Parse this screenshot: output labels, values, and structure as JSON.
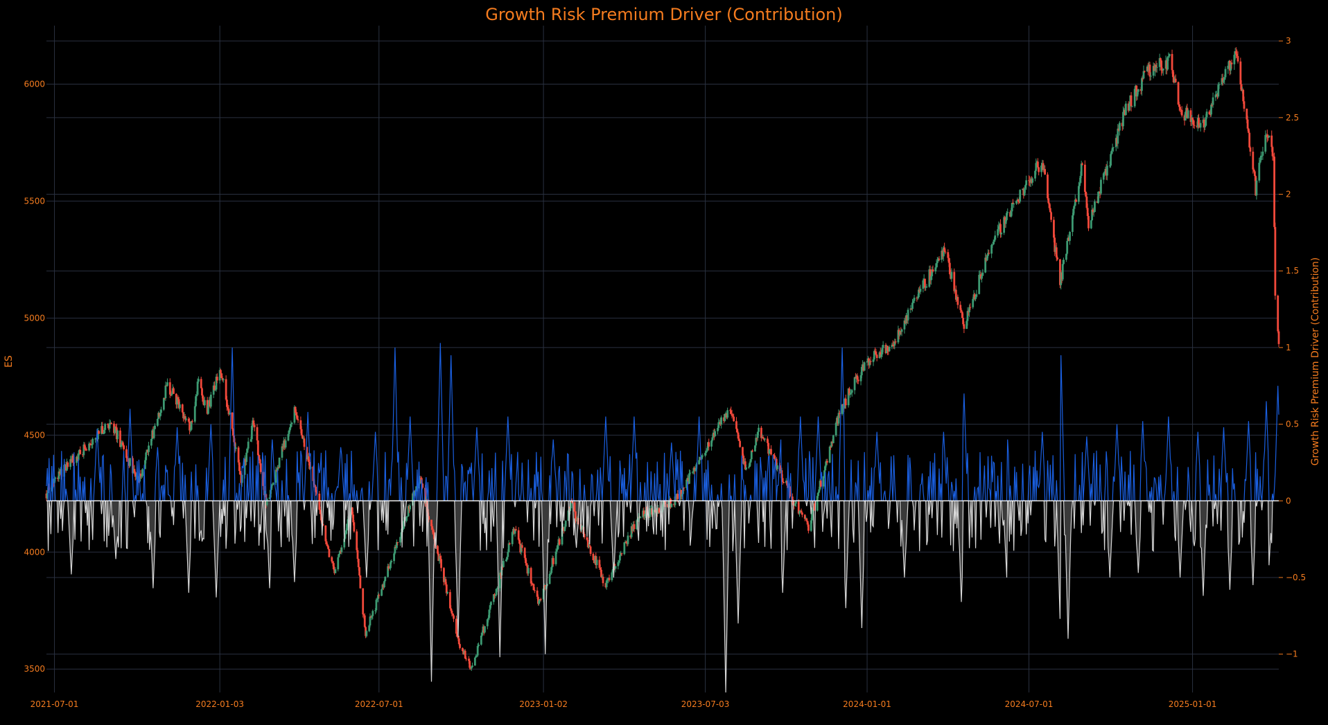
{
  "chart_data": {
    "type": "line",
    "title": "Growth Risk Premium Driver (Contribution)",
    "title_color": "#f57c1f",
    "tick_color": "#f57c1f",
    "background": "#000000",
    "grid_color": "#2a3140",
    "grid": true,
    "left_axis": {
      "label": "ES",
      "ylim": [
        3400,
        6250
      ],
      "ticks": [
        3500,
        4000,
        4500,
        5000,
        5500,
        6000
      ],
      "tick_labels": [
        "3500",
        "4000",
        "4500",
        "5000",
        "5500",
        "6000"
      ]
    },
    "right_axis": {
      "label": "Growth Risk Premium Driver (Contribution)",
      "ylim": [
        -1.25,
        3.1
      ],
      "ticks": [
        -1,
        -0.5,
        0,
        0.5,
        1,
        1.5,
        2,
        2.5,
        3
      ],
      "tick_labels": [
        "−1",
        "−0.5",
        "0",
        "0.5",
        "1",
        "1.5",
        "2",
        "2.5",
        "3"
      ]
    },
    "x_axis": {
      "type": "date",
      "range": [
        "2021-06-22",
        "2025-04-08"
      ],
      "ticks": [
        "2021-07-01",
        "2022-01-03",
        "2022-07-01",
        "2023-01-02",
        "2023-07-03",
        "2024-01-01",
        "2024-07-01",
        "2025-01-01"
      ],
      "tick_labels": [
        "2021-07-01",
        "2022-01-03",
        "2022-07-01",
        "2023-01-02",
        "2023-07-03",
        "2024-01-01",
        "2024-07-01",
        "2025-01-01"
      ]
    },
    "price_anchors": {
      "name": "ES",
      "up_color": "#3d9a72",
      "down_color": "#f2493b",
      "x": [
        "2021-06-22",
        "2021-07-01",
        "2021-09-02",
        "2021-10-04",
        "2021-11-05",
        "2021-12-01",
        "2021-12-10",
        "2021-12-20",
        "2022-01-04",
        "2022-01-27",
        "2022-02-10",
        "2022-02-24",
        "2022-03-29",
        "2022-05-12",
        "2022-05-31",
        "2022-06-16",
        "2022-08-16",
        "2022-09-30",
        "2022-10-13",
        "2022-11-30",
        "2022-12-28",
        "2023-02-02",
        "2023-03-13",
        "2023-04-18",
        "2023-05-31",
        "2023-07-31",
        "2023-08-18",
        "2023-09-01",
        "2023-10-27",
        "2023-12-01",
        "2023-12-28",
        "2024-01-31",
        "2024-02-28",
        "2024-03-28",
        "2024-04-19",
        "2024-05-20",
        "2024-07-16",
        "2024-08-05",
        "2024-08-30",
        "2024-09-06",
        "2024-10-17",
        "2024-11-11",
        "2024-12-06",
        "2024-12-19",
        "2025-01-13",
        "2025-02-19",
        "2025-03-13",
        "2025-03-25",
        "2025-04-02",
        "2025-04-04",
        "2025-04-08"
      ],
      "y": [
        4250,
        4310,
        4560,
        4300,
        4720,
        4530,
        4730,
        4600,
        4790,
        4300,
        4560,
        4200,
        4620,
        3900,
        4200,
        3650,
        4320,
        3600,
        3500,
        4100,
        3780,
        4200,
        3860,
        4150,
        4220,
        4620,
        4350,
        4520,
        4100,
        4600,
        4800,
        4900,
        5100,
        5300,
        4960,
        5320,
        5680,
        5150,
        5650,
        5400,
        5880,
        6050,
        6100,
        5880,
        5830,
        6150,
        5550,
        5800,
        5680,
        5100,
        4900
      ]
    },
    "contribution": {
      "name": "Growth Risk Premium Driver (Contribution)",
      "positive_color": "#1a5fe0",
      "negative_color": "#d8d8d8",
      "zero_line_color": "#ffffff",
      "negative_fill": "#3a3a3a",
      "peaks_x": [
        "2021-08-18",
        "2021-09-24",
        "2021-10-25",
        "2021-11-16",
        "2021-12-24",
        "2022-01-17",
        "2022-03-03",
        "2022-04-12",
        "2022-05-19",
        "2022-06-27",
        "2022-07-19",
        "2022-08-05",
        "2022-09-08",
        "2022-09-20",
        "2022-10-19",
        "2022-11-23",
        "2023-01-13",
        "2023-03-13",
        "2023-04-14",
        "2023-05-26",
        "2023-06-26",
        "2023-07-27",
        "2023-09-26",
        "2023-10-18",
        "2023-11-07",
        "2023-12-04",
        "2024-01-12",
        "2024-02-12",
        "2024-03-27",
        "2024-04-19",
        "2024-06-07",
        "2024-07-16",
        "2024-08-06",
        "2024-09-04",
        "2024-10-08",
        "2024-11-06",
        "2024-12-05",
        "2025-01-07",
        "2025-02-05",
        "2025-03-05",
        "2025-03-25",
        "2025-04-07"
      ],
      "peaks_y": [
        0.47,
        0.6,
        0.35,
        0.48,
        0.5,
        1.0,
        0.4,
        0.58,
        0.35,
        0.45,
        1.0,
        0.55,
        1.03,
        0.95,
        0.48,
        0.55,
        0.4,
        0.55,
        0.55,
        0.38,
        0.55,
        0.35,
        0.4,
        0.55,
        0.55,
        1.0,
        0.45,
        0.35,
        0.45,
        0.7,
        0.4,
        0.45,
        0.95,
        0.42,
        0.5,
        0.52,
        0.55,
        0.45,
        0.48,
        0.52,
        0.65,
        0.75
      ],
      "troughs_x": [
        "2021-07-20",
        "2021-09-08",
        "2021-10-20",
        "2021-11-29",
        "2021-12-30",
        "2022-02-28",
        "2022-03-28",
        "2022-06-17",
        "2022-08-29",
        "2022-09-28",
        "2022-11-14",
        "2023-01-04",
        "2023-03-22",
        "2023-07-26",
        "2023-08-09",
        "2023-09-28",
        "2023-12-08",
        "2023-12-26",
        "2024-02-12",
        "2024-04-16",
        "2024-06-06",
        "2024-08-05",
        "2024-08-14",
        "2024-09-30",
        "2024-11-01",
        "2024-12-18",
        "2025-01-13",
        "2025-02-12",
        "2025-03-10",
        "2025-03-28"
      ],
      "troughs_y": [
        -0.48,
        -0.38,
        -0.57,
        -0.6,
        -0.63,
        -0.57,
        -0.53,
        -0.5,
        -1.18,
        -0.89,
        -1.02,
        -1.0,
        -0.5,
        -1.25,
        -0.8,
        -0.6,
        -0.7,
        -0.83,
        -0.5,
        -0.66,
        -0.5,
        -0.77,
        -0.9,
        -0.5,
        -0.47,
        -0.5,
        -0.62,
        -0.58,
        -0.55,
        -0.42
      ]
    }
  }
}
